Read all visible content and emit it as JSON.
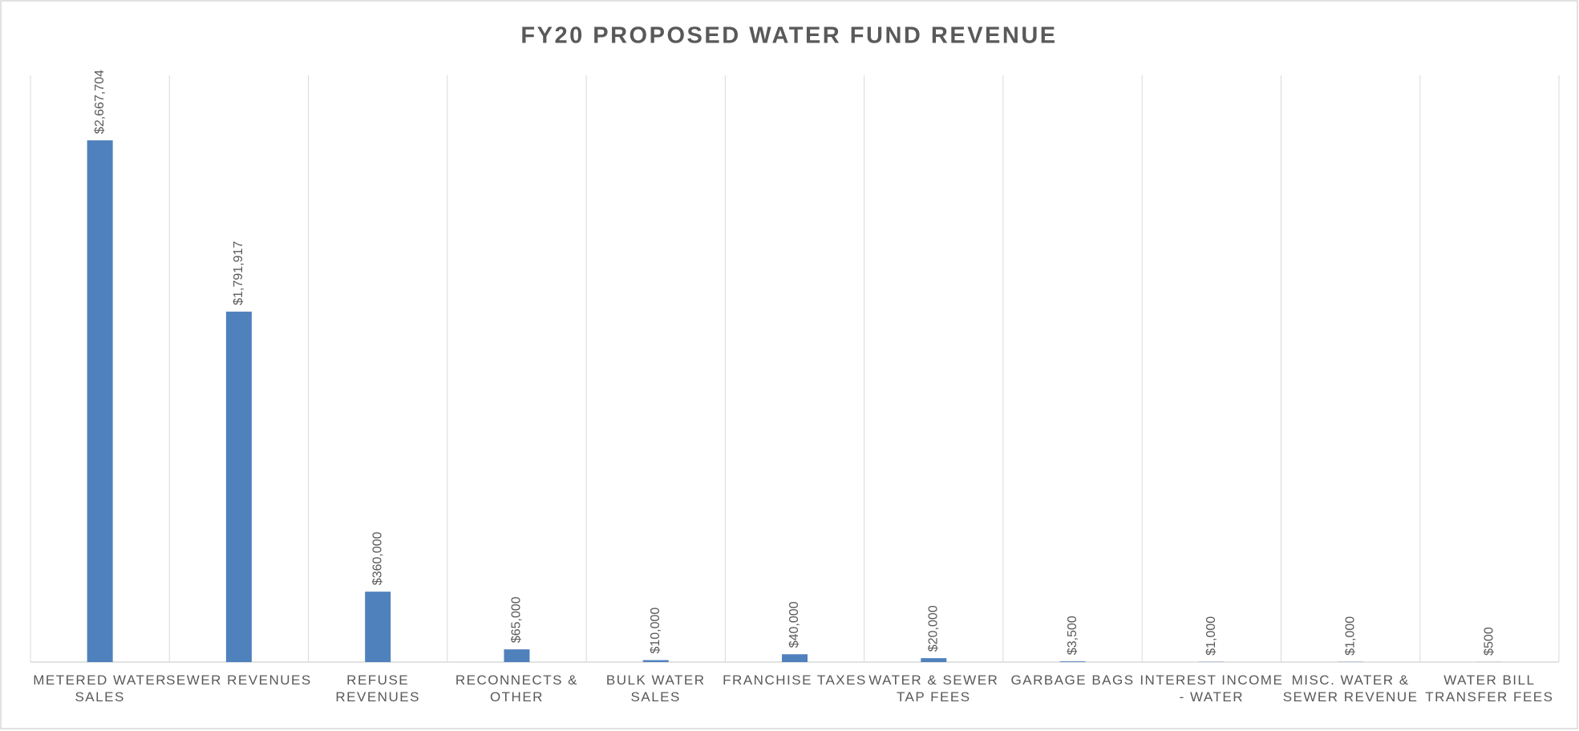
{
  "chart_data": {
    "type": "bar",
    "title": "FY20 PROPOSED  WATER FUND REVENUE",
    "categories": [
      "METERED WATER SALES",
      "SEWER REVENUES",
      "REFUSE REVENUES",
      "RECONNECTS & OTHER",
      "BULK WATER SALES",
      "FRANCHISE TAXES",
      "WATER & SEWER TAP FEES",
      "GARBAGE BAGS",
      "INTEREST INCOME - WATER",
      "MISC. WATER & SEWER REVENUE",
      "WATER BILL TRANSFER FEES"
    ],
    "values": [
      2667704,
      1791917,
      360000,
      65000,
      10000,
      40000,
      20000,
      3500,
      1000,
      1000,
      500
    ],
    "value_labels": [
      "$2,667,704",
      "$1,791,917",
      "$360,000",
      "$65,000",
      "$10,000",
      "$40,000",
      "$20,000",
      "$3,500",
      "$1,000",
      "$1,000",
      "$500"
    ],
    "color": "#4f81bd",
    "ylim": [
      0,
      3000000
    ]
  }
}
